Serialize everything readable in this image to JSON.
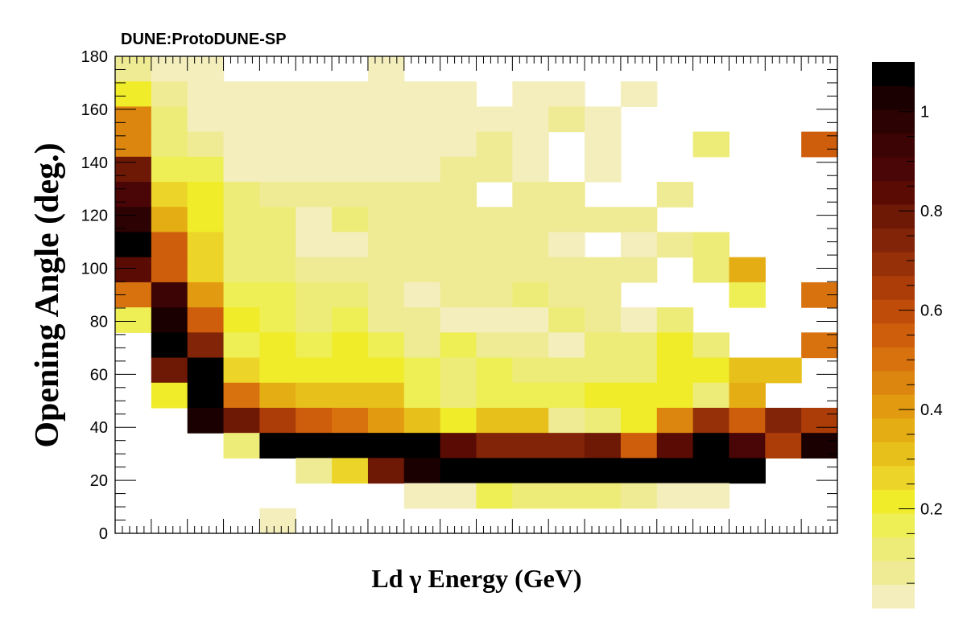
{
  "heading": "DUNE:ProtoDUNE-SP",
  "chart_data": {
    "type": "heatmap",
    "title": "",
    "xlabel": "Ld  γ Energy (GeV)",
    "ylabel": "Opening Angle (deg.)",
    "x_bins": 20,
    "ylim": [
      0,
      180
    ],
    "y_bin_width": 10,
    "y_ticks": [
      "0",
      "20",
      "40",
      "60",
      "80",
      "100",
      "120",
      "140",
      "160",
      "180"
    ],
    "z_ticks": [
      "0.2",
      "0.4",
      "0.6",
      "0.8",
      "1"
    ],
    "zlim": [
      0,
      1.1
    ],
    "palette": [
      "#f3eebc",
      "#efeb94",
      "#eeec78",
      "#eeee55",
      "#f0ec2a",
      "#ecd528",
      "#e8c01c",
      "#e5ad14",
      "#e29a10",
      "#dd860f",
      "#d8720f",
      "#ce5e0c",
      "#c04c0a",
      "#ac3c08",
      "#963008",
      "#822408",
      "#6e1806",
      "#5a0c04",
      "#4a0606",
      "#3c0404",
      "#2c0202",
      "#1a0000",
      "#000000"
    ],
    "rows_from_bottom": [
      [
        null,
        null,
        null,
        null,
        null,
        null,
        null,
        null,
        null,
        null,
        null,
        null,
        null,
        null,
        null,
        null,
        null,
        null,
        null,
        null
      ],
      [
        null,
        null,
        null,
        null,
        null,
        null,
        null,
        null,
        null,
        null,
        null,
        null,
        null,
        null,
        null,
        null,
        null,
        null,
        null,
        null
      ],
      [
        null,
        null,
        null,
        null,
        null,
        null,
        null,
        null,
        null,
        null,
        null,
        null,
        null,
        null,
        null,
        null,
        null,
        null,
        null,
        null
      ],
      [
        null,
        null,
        null,
        null,
        null,
        null,
        null,
        null,
        null,
        null,
        null,
        null,
        null,
        null,
        null,
        null,
        null,
        null,
        null,
        null
      ],
      [
        null,
        null,
        null,
        null,
        null,
        null,
        null,
        null,
        null,
        null,
        null,
        null,
        null,
        null,
        null,
        null,
        null,
        null,
        null,
        null
      ],
      [
        null,
        null,
        null,
        null,
        null,
        null,
        null,
        null,
        null,
        null,
        null,
        null,
        null,
        null,
        null,
        null,
        null,
        null,
        null,
        null
      ],
      [
        null,
        null,
        null,
        null,
        null,
        null,
        null,
        null,
        null,
        null,
        null,
        null,
        null,
        null,
        null,
        null,
        null,
        null,
        null,
        null
      ],
      [
        null,
        null,
        null,
        null,
        null,
        null,
        null,
        null,
        null,
        null,
        null,
        null,
        null,
        null,
        null,
        null,
        null,
        null,
        null,
        null
      ],
      [
        null,
        null,
        null,
        null,
        null,
        null,
        null,
        null,
        null,
        null,
        null,
        null,
        null,
        null,
        null,
        null,
        null,
        null,
        null,
        null
      ],
      [
        null,
        null,
        null,
        null,
        null,
        null,
        null,
        null,
        null,
        null,
        null,
        null,
        null,
        null,
        null,
        null,
        null,
        null,
        null,
        null
      ],
      [
        null,
        null,
        null,
        null,
        null,
        null,
        null,
        null,
        null,
        null,
        null,
        null,
        null,
        null,
        null,
        null,
        null,
        null,
        null,
        null
      ],
      [
        null,
        null,
        null,
        null,
        null,
        null,
        null,
        null,
        null,
        null,
        null,
        null,
        null,
        null,
        null,
        null,
        null,
        null,
        null,
        null
      ],
      [
        null,
        null,
        null,
        null,
        null,
        null,
        null,
        null,
        null,
        null,
        null,
        null,
        null,
        null,
        null,
        null,
        null,
        null,
        null,
        null
      ],
      [
        null,
        null,
        null,
        null,
        null,
        null,
        null,
        null,
        null,
        null,
        null,
        null,
        null,
        null,
        null,
        null,
        null,
        null,
        null,
        null
      ],
      [
        null,
        null,
        null,
        null,
        null,
        null,
        null,
        null,
        null,
        null,
        null,
        null,
        null,
        null,
        null,
        null,
        null,
        null,
        null,
        null
      ],
      [
        null,
        null,
        null,
        null,
        null,
        null,
        null,
        null,
        null,
        null,
        null,
        null,
        null,
        null,
        null,
        null,
        null,
        null,
        null,
        null
      ],
      [
        null,
        null,
        null,
        null,
        null,
        null,
        null,
        null,
        null,
        null,
        null,
        null,
        null,
        null,
        null,
        null,
        null,
        null,
        null,
        null
      ],
      [
        null,
        null,
        null,
        null,
        null,
        null,
        null,
        null,
        null,
        null,
        null,
        null,
        null,
        null,
        null,
        null,
        null,
        null,
        null,
        null
      ]
    ]
  }
}
